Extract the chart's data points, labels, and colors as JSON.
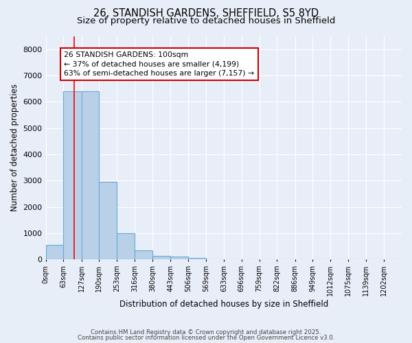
{
  "title1": "26, STANDISH GARDENS, SHEFFIELD, S5 8YD",
  "title2": "Size of property relative to detached houses in Sheffield",
  "xlabel": "Distribution of detached houses by size in Sheffield",
  "ylabel": "Number of detached properties",
  "bar_edges": [
    0,
    63,
    127,
    190,
    253,
    316,
    380,
    443,
    506,
    569,
    633,
    696,
    759,
    822,
    886,
    949,
    1012,
    1075,
    1139,
    1202,
    1265
  ],
  "bar_heights": [
    550,
    6400,
    6400,
    2950,
    1000,
    350,
    150,
    100,
    50,
    5,
    0,
    0,
    0,
    0,
    0,
    0,
    0,
    0,
    0,
    0
  ],
  "bar_color": "#b8d0e8",
  "bar_edgecolor": "#6aaad4",
  "red_line_x": 100,
  "ylim": [
    0,
    8500
  ],
  "yticks": [
    0,
    1000,
    2000,
    3000,
    4000,
    5000,
    6000,
    7000,
    8000
  ],
  "annotation_text": "26 STANDISH GARDENS: 100sqm\n← 37% of detached houses are smaller (4,199)\n63% of semi-detached houses are larger (7,157) →",
  "annotation_border_color": "#cc0000",
  "footer1": "Contains HM Land Registry data © Crown copyright and database right 2025.",
  "footer2": "Contains public sector information licensed under the Open Government Licence v3.0.",
  "background_color": "#e8eef8",
  "grid_color": "#ffffff",
  "title_fontsize": 10.5,
  "subtitle_fontsize": 9.5
}
